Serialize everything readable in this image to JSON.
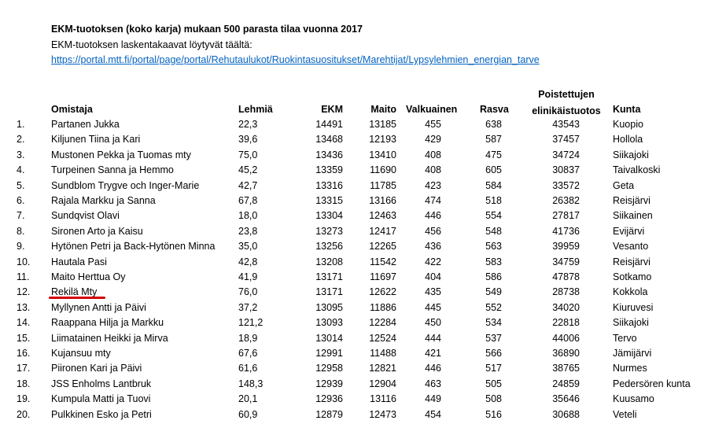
{
  "title": "EKM-tuotoksen (koko karja) mukaan 500 parasta tilaa vuonna 2017",
  "subtitle": "EKM-tuotoksen laskentakaavat löytyvät täältä:",
  "link": "https://portal.mtt.fi/portal/page/portal/Rehutaulukot/Ruokintasuositukset/Marehtijat/Lypsylehmien_energian_tarve",
  "headers": {
    "omistaja": "Omistaja",
    "lehmia": "Lehmiä",
    "ekm": "EKM",
    "maito": "Maito",
    "valkuainen": "Valkuainen",
    "rasva": "Rasva",
    "poistettujen": "Poistettujen",
    "elinikaistuotos": "elinikäistuotos",
    "kunta": "Kunta"
  },
  "highlight_color": "#d40000",
  "rows": [
    {
      "n": "1.",
      "name": "Partanen Jukka",
      "lehmia": "22,3",
      "ekm": "14491",
      "maito": "13185",
      "valk": "455",
      "rasva": "638",
      "elin": "43543",
      "kunta": "Kuopio"
    },
    {
      "n": "2.",
      "name": "Kiljunen Tiina ja Kari",
      "lehmia": "39,6",
      "ekm": "13468",
      "maito": "12193",
      "valk": "429",
      "rasva": "587",
      "elin": "37457",
      "kunta": "Hollola"
    },
    {
      "n": "3.",
      "name": "Mustonen Pekka ja Tuomas mty",
      "lehmia": "75,0",
      "ekm": "13436",
      "maito": "13410",
      "valk": "408",
      "rasva": "475",
      "elin": "34724",
      "kunta": "Siikajoki"
    },
    {
      "n": "4.",
      "name": "Turpeinen Sanna ja Hemmo",
      "lehmia": "45,2",
      "ekm": "13359",
      "maito": "11690",
      "valk": "408",
      "rasva": "605",
      "elin": "30837",
      "kunta": "Taivalkoski"
    },
    {
      "n": "5.",
      "name": "Sundblom Trygve och Inger-Marie",
      "lehmia": "42,7",
      "ekm": "13316",
      "maito": "11785",
      "valk": "423",
      "rasva": "584",
      "elin": "33572",
      "kunta": "Geta"
    },
    {
      "n": "6.",
      "name": "Rajala Markku ja Sanna",
      "lehmia": "67,8",
      "ekm": "13315",
      "maito": "13166",
      "valk": "474",
      "rasva": "518",
      "elin": "26382",
      "kunta": "Reisjärvi"
    },
    {
      "n": "7.",
      "name": "Sundqvist Olavi",
      "lehmia": "18,0",
      "ekm": "13304",
      "maito": "12463",
      "valk": "446",
      "rasva": "554",
      "elin": "27817",
      "kunta": "Siikainen"
    },
    {
      "n": "8.",
      "name": "Sironen Arto ja Kaisu",
      "lehmia": "23,8",
      "ekm": "13273",
      "maito": "12417",
      "valk": "456",
      "rasva": "548",
      "elin": "41736",
      "kunta": "Evijärvi"
    },
    {
      "n": "9.",
      "name": "Hytönen Petri ja Back-Hytönen Minna",
      "lehmia": "35,0",
      "ekm": "13256",
      "maito": "12265",
      "valk": "436",
      "rasva": "563",
      "elin": "39959",
      "kunta": "Vesanto"
    },
    {
      "n": "10.",
      "name": "Hautala Pasi",
      "lehmia": "42,8",
      "ekm": "13208",
      "maito": "11542",
      "valk": "422",
      "rasva": "583",
      "elin": "34759",
      "kunta": "Reisjärvi"
    },
    {
      "n": "11.",
      "name": "Maito Herttua Oy",
      "lehmia": "41,9",
      "ekm": "13171",
      "maito": "11697",
      "valk": "404",
      "rasva": "586",
      "elin": "47878",
      "kunta": "Sotkamo"
    },
    {
      "n": "12.",
      "name": "Rekilä Mty",
      "lehmia": "76,0",
      "ekm": "13171",
      "maito": "12622",
      "valk": "435",
      "rasva": "549",
      "elin": "28738",
      "kunta": "Kokkola"
    },
    {
      "n": "13.",
      "name": "Myllynen Antti ja Päivi",
      "lehmia": "37,2",
      "ekm": "13095",
      "maito": "11886",
      "valk": "445",
      "rasva": "552",
      "elin": "34020",
      "kunta": "Kiuruvesi"
    },
    {
      "n": "14.",
      "name": "Raappana Hilja ja Markku",
      "lehmia": "121,2",
      "ekm": "13093",
      "maito": "12284",
      "valk": "450",
      "rasva": "534",
      "elin": "22818",
      "kunta": "Siikajoki"
    },
    {
      "n": "15.",
      "name": "Liimatainen Heikki ja Mirva",
      "lehmia": "18,9",
      "ekm": "13014",
      "maito": "12524",
      "valk": "444",
      "rasva": "537",
      "elin": "44006",
      "kunta": "Tervo"
    },
    {
      "n": "16.",
      "name": "Kujansuu mty",
      "lehmia": "67,6",
      "ekm": "12991",
      "maito": "11488",
      "valk": "421",
      "rasva": "566",
      "elin": "36890",
      "kunta": "Jämijärvi"
    },
    {
      "n": "17.",
      "name": "Piironen Kari ja Päivi",
      "lehmia": "61,6",
      "ekm": "12958",
      "maito": "12821",
      "valk": "446",
      "rasva": "517",
      "elin": "38765",
      "kunta": "Nurmes"
    },
    {
      "n": "18.",
      "name": "JSS Enholms Lantbruk",
      "lehmia": "148,3",
      "ekm": "12939",
      "maito": "12904",
      "valk": "463",
      "rasva": "505",
      "elin": "24859",
      "kunta": "Pedersören kunta"
    },
    {
      "n": "19.",
      "name": "Kumpula Matti ja Tuovi",
      "lehmia": "20,1",
      "ekm": "12936",
      "maito": "13116",
      "valk": "449",
      "rasva": "508",
      "elin": "35646",
      "kunta": "Kuusamo"
    },
    {
      "n": "20.",
      "name": "Pulkkinen Esko ja Petri",
      "lehmia": "60,9",
      "ekm": "12879",
      "maito": "12473",
      "valk": "454",
      "rasva": "516",
      "elin": "30688",
      "kunta": "Veteli"
    }
  ]
}
